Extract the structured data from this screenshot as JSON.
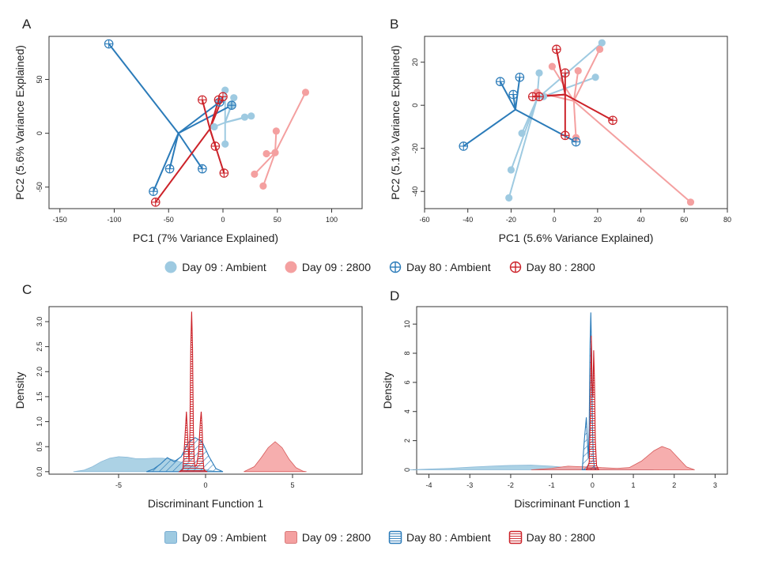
{
  "colors": {
    "day09_ambient": "#9ecae1",
    "day09_2800": "#f4a0a0",
    "day80_ambient": "#2b7bb9",
    "day80_2800": "#cc2229"
  },
  "legend_top": [
    "Day 09 : Ambient",
    "Day 09 : 2800",
    "Day 80 : Ambient",
    "Day 80 : 2800"
  ],
  "legend_bottom": [
    "Day 09 : Ambient",
    "Day 09 : 2800",
    "Day 80 : Ambient",
    "Day 80 : 2800"
  ],
  "chart_data": [
    {
      "panel": "A",
      "type": "scatter",
      "xlabel": "PC1 (7% Variance Explained)",
      "ylabel": "PC2 (5.6% Variance Explained)",
      "xlim": [
        -160,
        128
      ],
      "ylim": [
        -70,
        90
      ],
      "xticks": [
        -150,
        -100,
        -50,
        0,
        50,
        100
      ],
      "yticks": [
        -50,
        0,
        50
      ],
      "series": [
        {
          "name": "Day 09 : Ambient",
          "color_key": "day09_ambient",
          "marker": "filled",
          "centroid": [
            2,
            10
          ],
          "points": [
            [
              2,
              40
            ],
            [
              10,
              33
            ],
            [
              -8,
              6
            ],
            [
              2,
              -10
            ],
            [
              20,
              15
            ],
            [
              26,
              16
            ],
            [
              8,
              26
            ]
          ]
        },
        {
          "name": "Day 09 : 2800",
          "color_key": "day09_2800",
          "marker": "filled",
          "centroid": [
            48,
            -18
          ],
          "points": [
            [
              76,
              38
            ],
            [
              49,
              2
            ],
            [
              29,
              -38
            ],
            [
              37,
              -49
            ],
            [
              40,
              -19
            ],
            [
              48,
              -18
            ]
          ]
        },
        {
          "name": "Day 80 : Ambient",
          "color_key": "day80_ambient",
          "marker": "cross",
          "centroid": [
            -41,
            0
          ],
          "points": [
            [
              -105,
              83
            ],
            [
              -49,
              -33
            ],
            [
              -64,
              -54
            ],
            [
              -19,
              -33
            ],
            [
              8,
              26
            ],
            [
              -3,
              29
            ]
          ]
        },
        {
          "name": "Day 80 : 2800",
          "color_key": "day80_2800",
          "marker": "cross",
          "centroid": [
            -12,
            4
          ],
          "points": [
            [
              -62,
              -64
            ],
            [
              -19,
              31
            ],
            [
              -4,
              31
            ],
            [
              1,
              -37
            ],
            [
              0,
              34
            ],
            [
              -7,
              -12
            ]
          ]
        }
      ]
    },
    {
      "panel": "B",
      "type": "scatter",
      "xlabel": "PC1 (5.6% Variance Explained)",
      "ylabel": "PC2 (5.1% Variance Explained)",
      "xlim": [
        -60,
        80
      ],
      "ylim": [
        -48,
        32
      ],
      "xticks": [
        -60,
        -40,
        -20,
        0,
        20,
        40,
        60,
        80
      ],
      "yticks": [
        -40,
        -20,
        0,
        20
      ],
      "series": [
        {
          "name": "Day 09 : Ambient",
          "color_key": "day09_ambient",
          "marker": "filled",
          "centroid": [
            -8,
            3
          ],
          "points": [
            [
              22,
              29
            ],
            [
              -7,
              15
            ],
            [
              -15,
              -13
            ],
            [
              -20,
              -30
            ],
            [
              -21,
              -43
            ],
            [
              19,
              13
            ],
            [
              -5,
              4
            ]
          ]
        },
        {
          "name": "Day 09 : 2800",
          "color_key": "day09_2800",
          "marker": "filled",
          "centroid": [
            9,
            2
          ],
          "points": [
            [
              63,
              -45
            ],
            [
              21,
              26
            ],
            [
              11,
              16
            ],
            [
              -1,
              18
            ],
            [
              10,
              -15
            ],
            [
              -8,
              6
            ]
          ]
        },
        {
          "name": "Day 80 : Ambient",
          "color_key": "day80_ambient",
          "marker": "cross",
          "centroid": [
            -18,
            -2
          ],
          "points": [
            [
              -42,
              -19
            ],
            [
              -25,
              11
            ],
            [
              -16,
              13
            ],
            [
              -19,
              5
            ],
            [
              10,
              -17
            ]
          ]
        },
        {
          "name": "Day 80 : 2800",
          "color_key": "day80_2800",
          "marker": "cross",
          "centroid": [
            5,
            5
          ],
          "points": [
            [
              1,
              26
            ],
            [
              5,
              15
            ],
            [
              -7,
              4
            ],
            [
              -10,
              4
            ],
            [
              27,
              -7
            ],
            [
              5,
              -14
            ]
          ]
        }
      ]
    },
    {
      "panel": "C",
      "type": "area",
      "xlabel": "Discriminant Function 1",
      "ylabel": "Density",
      "xlim": [
        -9,
        9
      ],
      "ylim": [
        -0.05,
        3.3
      ],
      "xticks": [
        -5,
        0,
        5
      ],
      "yticks": [
        0.0,
        0.5,
        1.0,
        1.5,
        2.0,
        2.5,
        3.0
      ],
      "series": [
        {
          "name": "Day 09 : Ambient",
          "color_key": "day09_ambient",
          "fill": "solid",
          "x": [
            -7.6,
            -7,
            -6.5,
            -6,
            -5.5,
            -5,
            -4.5,
            -4,
            -3.5,
            -3,
            -2.5,
            -2,
            -1.5,
            -1,
            -0.5,
            0,
            0.5,
            1
          ],
          "y": [
            0,
            0.03,
            0.1,
            0.2,
            0.27,
            0.3,
            0.29,
            0.26,
            0.26,
            0.27,
            0.27,
            0.25,
            0.2,
            0.14,
            0.08,
            0.04,
            0.01,
            0
          ]
        },
        {
          "name": "Day 09 : 2800",
          "color_key": "day09_2800",
          "fill": "solid",
          "x": [
            2.2,
            2.8,
            3.2,
            3.6,
            4.0,
            4.4,
            4.8,
            5.2,
            5.6,
            5.8
          ],
          "y": [
            0,
            0.1,
            0.28,
            0.48,
            0.6,
            0.48,
            0.25,
            0.08,
            0.01,
            0
          ]
        },
        {
          "name": "Day 80 : Ambient",
          "color_key": "day80_ambient",
          "fill": "hatch",
          "x": [
            -3.4,
            -3.0,
            -2.6,
            -2.2,
            -1.8,
            -1.4,
            -1.0,
            -0.6,
            -0.2,
            0.2,
            0.6,
            1.0
          ],
          "y": [
            0,
            0.05,
            0.15,
            0.28,
            0.2,
            0.3,
            0.58,
            0.68,
            0.6,
            0.3,
            0.06,
            0
          ]
        },
        {
          "name": "Day 80 : 2800",
          "color_key": "day80_2800",
          "fill": "hatch",
          "x": [
            -1.5,
            -1.3,
            -1.2,
            -1.1,
            -1.0,
            -0.95,
            -0.9,
            -0.85,
            -0.8,
            -0.75,
            -0.7,
            -0.65,
            -0.6,
            -0.5,
            -0.4,
            -0.3,
            -0.25,
            -0.2,
            -0.15,
            -0.1,
            0.0,
            0.1
          ],
          "y": [
            0,
            0.05,
            0.6,
            1.2,
            0.5,
            0.2,
            0.8,
            2.5,
            3.2,
            2.5,
            0.8,
            0.2,
            0.1,
            0.15,
            0.4,
            1.0,
            1.2,
            0.9,
            0.3,
            0.05,
            0.01,
            0
          ]
        }
      ]
    },
    {
      "panel": "D",
      "type": "area",
      "xlabel": "Discriminant Function 1",
      "ylabel": "Density",
      "xlim": [
        -4.3,
        3.3
      ],
      "ylim": [
        -0.3,
        11.2
      ],
      "xticks": [
        -4,
        -3,
        -2,
        -1,
        0,
        1,
        2,
        3
      ],
      "yticks": [
        0,
        2,
        4,
        6,
        8,
        10
      ],
      "series": [
        {
          "name": "Day 09 : Ambient",
          "color_key": "day09_ambient",
          "fill": "solid",
          "x": [
            -4.5,
            -4,
            -3.5,
            -3,
            -2.5,
            -2,
            -1.5,
            -1,
            -0.5,
            0,
            0.5,
            1,
            1.5
          ],
          "y": [
            0,
            0.05,
            0.1,
            0.18,
            0.25,
            0.3,
            0.32,
            0.25,
            0.12,
            0.05,
            0.02,
            0.01,
            0
          ]
        },
        {
          "name": "Day 09 : 2800",
          "color_key": "day09_2800",
          "fill": "solid",
          "x": [
            -1.5,
            -1.0,
            -0.6,
            -0.2,
            0.2,
            0.6,
            0.9,
            1.2,
            1.5,
            1.7,
            1.9,
            2.1,
            2.3,
            2.5
          ],
          "y": [
            0,
            0.1,
            0.25,
            0.2,
            0.15,
            0.1,
            0.15,
            0.6,
            1.3,
            1.6,
            1.4,
            0.8,
            0.2,
            0
          ]
        },
        {
          "name": "Day 80 : Ambient",
          "color_key": "day80_ambient",
          "fill": "hatch",
          "x": [
            -0.25,
            -0.2,
            -0.15,
            -0.12,
            -0.1,
            -0.08,
            -0.06,
            -0.04,
            -0.02,
            0.0,
            0.02,
            0.05,
            0.1
          ],
          "y": [
            0,
            2.0,
            3.6,
            1.8,
            0.8,
            3.0,
            8.5,
            10.8,
            8.0,
            3.0,
            0.8,
            0.1,
            0
          ]
        },
        {
          "name": "Day 80 : 2800",
          "color_key": "day80_2800",
          "fill": "hatch",
          "x": [
            -0.15,
            -0.08,
            -0.05,
            -0.03,
            -0.01,
            0.01,
            0.03,
            0.05,
            0.07,
            0.1,
            0.15
          ],
          "y": [
            0,
            0.5,
            4.0,
            9.2,
            6.0,
            5.0,
            8.2,
            6.0,
            2.0,
            0.3,
            0
          ]
        }
      ]
    }
  ]
}
